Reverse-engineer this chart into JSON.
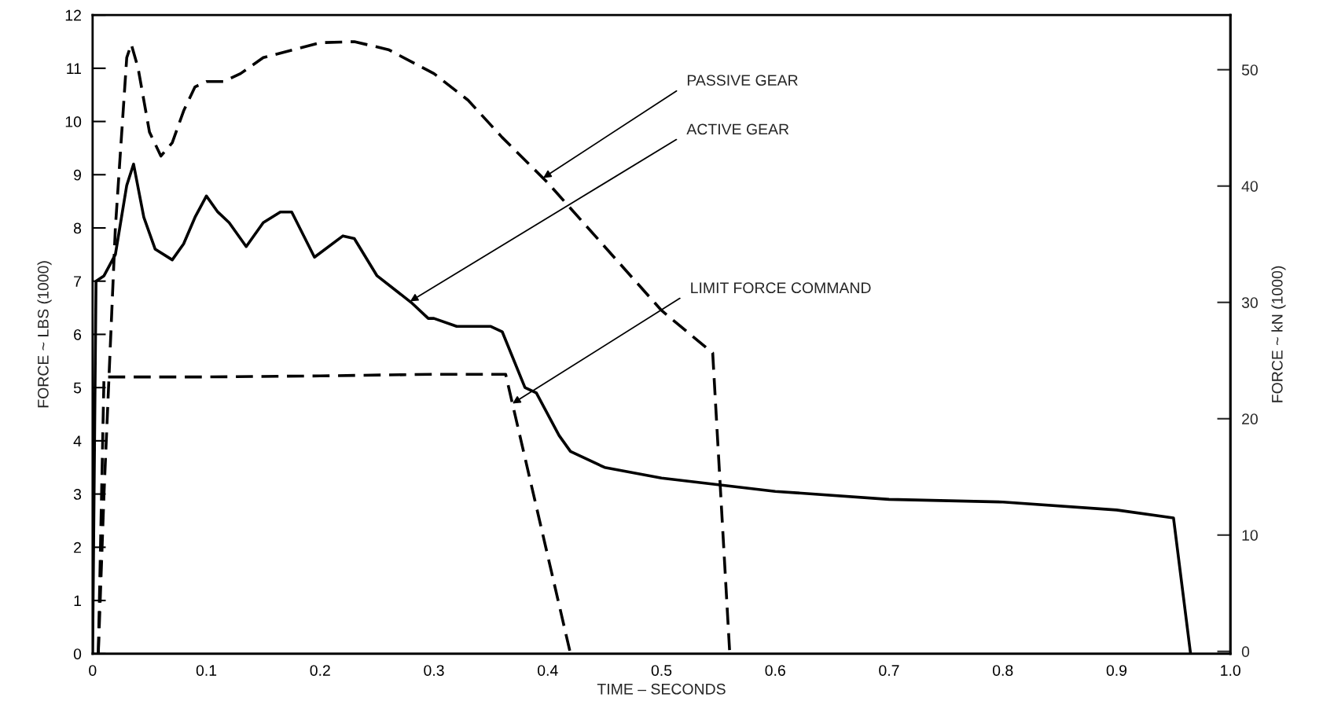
{
  "chart_data": {
    "type": "line",
    "xlabel": "TIME – SECONDS",
    "ylabel": "FORCE ~ LBS (1000)",
    "y2label": "FORCE ~ kN (1000)",
    "xlim": [
      0,
      1.0
    ],
    "xticks": [
      {
        "value": 0,
        "label": "0"
      },
      0.1,
      0.2,
      0.3,
      0.4,
      0.5,
      0.6,
      0.7,
      0.8,
      0.9,
      {
        "value": 1.0,
        "label": "1.0"
      }
    ],
    "ylim": [
      0,
      12
    ],
    "yticks": [
      0,
      1,
      2,
      3,
      4,
      5,
      6,
      7,
      8,
      9,
      10,
      11,
      12
    ],
    "y2lim": [
      -0.2,
      54.7
    ],
    "y2ticks": [
      0,
      10,
      20,
      30,
      40,
      50
    ],
    "grid": false,
    "legend": false,
    "series": [
      {
        "color": "#000000",
        "line_style": "solid",
        "x": [
          0,
          0.003,
          0.01,
          0.02,
          0.03,
          0.036,
          0.045,
          0.055,
          0.07,
          0.08,
          0.09,
          0.1,
          0.11,
          0.12,
          0.135,
          0.15,
          0.165,
          0.175,
          0.195,
          0.22,
          0.23,
          0.25,
          0.28,
          0.295,
          0.3,
          0.32,
          0.35,
          0.36,
          0.38,
          0.39,
          0.41,
          0.42,
          0.45,
          0.5,
          0.6,
          0.7,
          0.8,
          0.9,
          0.95,
          0.965
        ],
        "values": [
          0,
          7.0,
          7.1,
          7.5,
          8.8,
          9.2,
          8.2,
          7.6,
          7.4,
          7.7,
          8.2,
          8.6,
          8.3,
          8.1,
          7.65,
          8.1,
          8.3,
          8.3,
          7.45,
          7.85,
          7.8,
          7.1,
          6.6,
          6.3,
          6.3,
          6.15,
          6.15,
          6.05,
          5.0,
          4.9,
          4.1,
          3.8,
          3.5,
          3.3,
          3.05,
          2.9,
          2.85,
          2.7,
          2.55,
          0
        ]
      },
      {
        "color": "#000000",
        "line_style": "dashed",
        "x": [
          0.005,
          0.01,
          0.02,
          0.03,
          0.034,
          0.04,
          0.05,
          0.06,
          0.07,
          0.08,
          0.09,
          0.1,
          0.115,
          0.13,
          0.15,
          0.2,
          0.23,
          0.26,
          0.3,
          0.33,
          0.36,
          0.4,
          0.45,
          0.5,
          0.545,
          0.56
        ],
        "values": [
          0,
          3,
          8.0,
          11.2,
          11.45,
          11.0,
          9.8,
          9.35,
          9.6,
          10.2,
          10.65,
          10.75,
          10.75,
          10.9,
          11.2,
          11.48,
          11.5,
          11.35,
          10.9,
          10.4,
          9.7,
          8.85,
          7.65,
          6.45,
          5.65,
          0
        ]
      },
      {
        "color": "#000000",
        "line_style": "dashed",
        "x": [
          0.005,
          0.01,
          0.1,
          0.2,
          0.3,
          0.363,
          0.42
        ],
        "values": [
          0,
          5.2,
          5.2,
          5.22,
          5.25,
          5.25,
          0
        ]
      }
    ],
    "annotations": [
      {
        "text": "PASSIVE GEAR",
        "x": 0.396,
        "y": 8.94
      },
      {
        "text": "ACTIVE GEAR",
        "x": 0.279,
        "y": 6.62
      },
      {
        "text": "LIMIT FORCE COMMAND",
        "x": 0.369,
        "y": 4.7
      }
    ]
  }
}
